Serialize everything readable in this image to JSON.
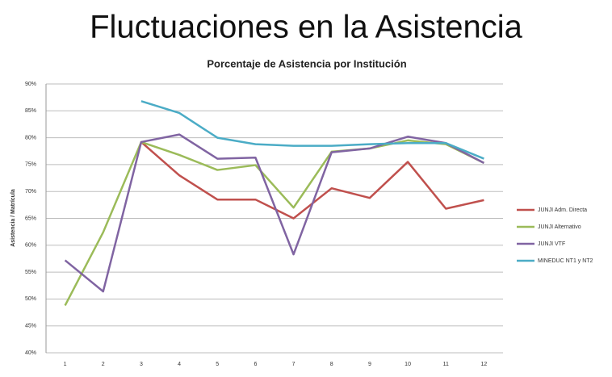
{
  "header": {
    "title": "Fluctuaciones en la Asistencia"
  },
  "chart_data": {
    "type": "line",
    "title": "Porcentaje de Asistencia por Institución",
    "ylabel": "Asistencia / Matrícula",
    "categories": [
      "1",
      "2",
      "3",
      "4",
      "5",
      "6",
      "7",
      "8",
      "9",
      "10",
      "11",
      "12"
    ],
    "series": [
      {
        "name": "JUNJI Adm. Directa",
        "color": "#c0504d",
        "values": [
          null,
          null,
          79.2,
          73,
          68.5,
          68.5,
          65,
          70.6,
          68.8,
          75.5,
          66.8,
          68.4
        ]
      },
      {
        "name": "JUNJI Alternativo",
        "color": "#9bbb59",
        "values": [
          48.8,
          62.4,
          79.2,
          76.8,
          74,
          74.9,
          67,
          77.4,
          78,
          79.5,
          78.8,
          75.3
        ]
      },
      {
        "name": "JUNJI VTF",
        "color": "#8064a2",
        "values": [
          57.2,
          51.4,
          79.2,
          80.6,
          76.1,
          76.3,
          58.3,
          77.3,
          78,
          80.2,
          79,
          75.3
        ]
      },
      {
        "name": "MINEDUC NT1 y NT2",
        "color": "#4bacc6",
        "values": [
          null,
          null,
          86.8,
          84.6,
          80,
          78.8,
          78.5,
          78.5,
          78.8,
          79,
          79,
          76.1
        ]
      }
    ],
    "ylim": [
      40,
      90
    ],
    "yticks": [
      {
        "value": 40,
        "label": "40%"
      },
      {
        "value": 45,
        "label": "45%"
      },
      {
        "value": 50,
        "label": "50%"
      },
      {
        "value": 55,
        "label": "55%"
      },
      {
        "value": 60,
        "label": "60%"
      },
      {
        "value": 65,
        "label": "65%"
      },
      {
        "value": 70,
        "label": "70%"
      },
      {
        "value": 75,
        "label": "75%"
      },
      {
        "value": 80,
        "label": "80%"
      },
      {
        "value": 85,
        "label": "85%"
      },
      {
        "value": 90,
        "label": "90%"
      }
    ],
    "grid": true,
    "legend": "right"
  }
}
